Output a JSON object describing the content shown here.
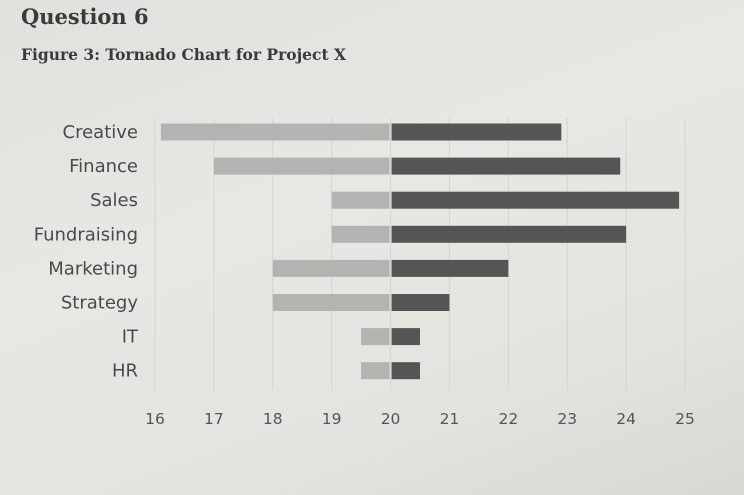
{
  "header": {
    "question": "Question 6",
    "figure_title": "Figure 3: Tornado Chart for Project X"
  },
  "chart_data": {
    "type": "bar",
    "orientation": "horizontal",
    "variant": "tornado",
    "title": "Figure 3: Tornado Chart for Project X",
    "baseline": 20,
    "categories": [
      "Creative",
      "Finance",
      "Sales",
      "Fundraising",
      "Marketing",
      "Strategy",
      "IT",
      "HR"
    ],
    "series": [
      {
        "values": [
          16.1,
          17,
          19,
          19,
          18,
          18,
          19.5,
          19.5
        ],
        "color": "#b3b3b1"
      },
      {
        "values": [
          22.9,
          23.9,
          24.9,
          24,
          22,
          21,
          20.5,
          20.5
        ],
        "color": "#555555"
      }
    ],
    "xlim": [
      16,
      25
    ],
    "xticks": [
      "16",
      "17",
      "18",
      "19",
      "20",
      "21",
      "22",
      "23",
      "24",
      "25"
    ],
    "grid": "vertical, faint",
    "legend": "none"
  }
}
